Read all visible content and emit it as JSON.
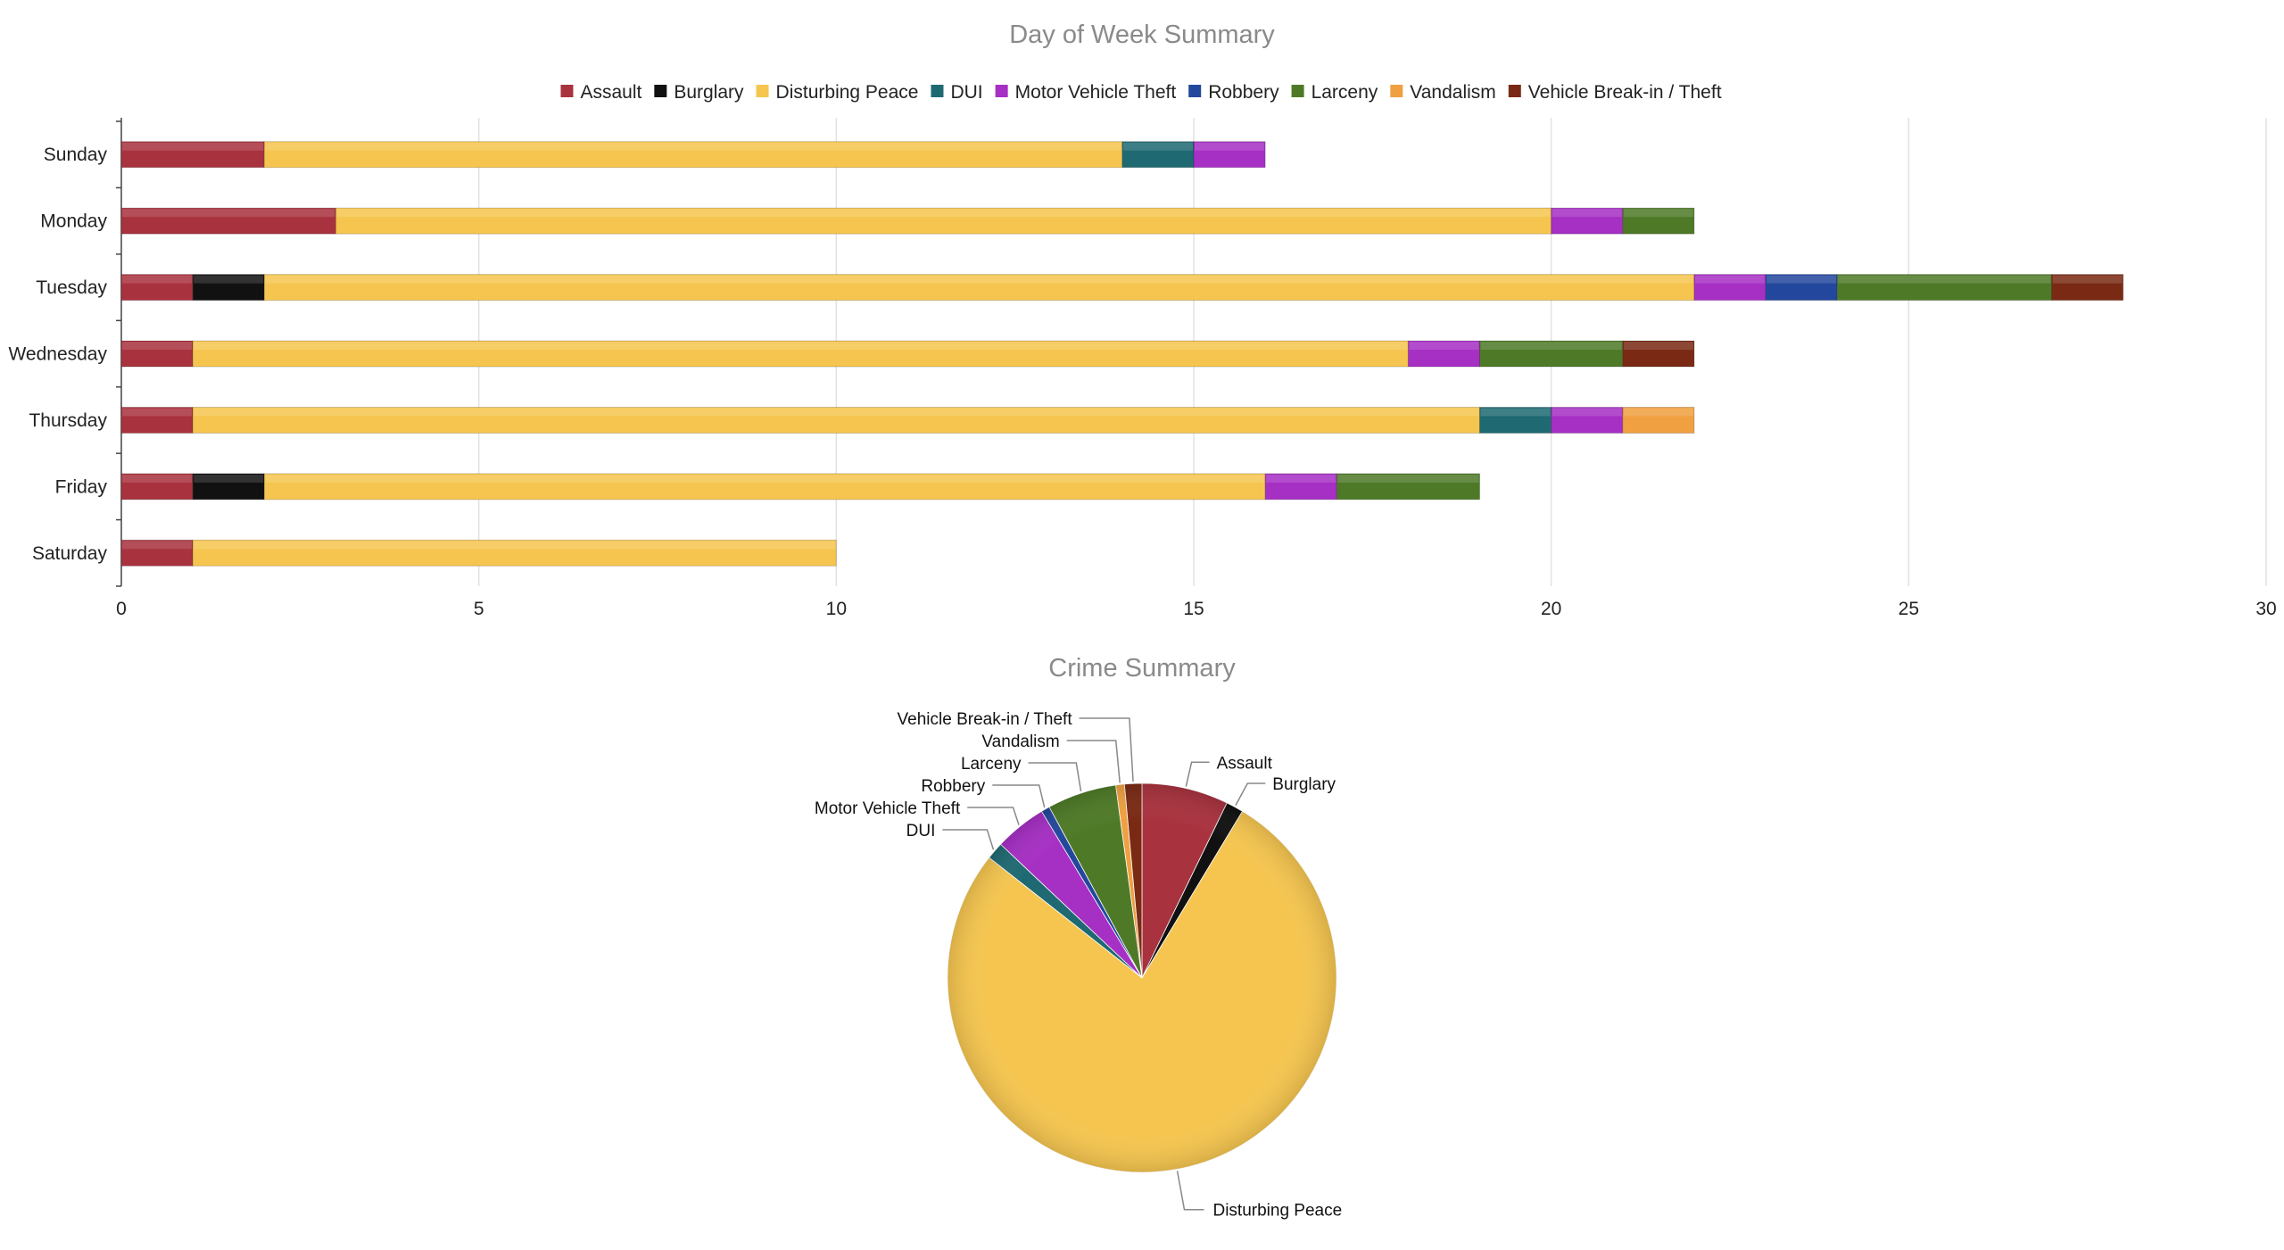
{
  "chart_data": [
    {
      "type": "bar",
      "orientation": "horizontal",
      "stacked": true,
      "title": "Day of Week Summary",
      "categories": [
        "Sunday",
        "Monday",
        "Tuesday",
        "Wednesday",
        "Thursday",
        "Friday",
        "Saturday"
      ],
      "series": [
        {
          "name": "Assault",
          "color": "#a8323e",
          "values": [
            2,
            3,
            1,
            1,
            1,
            1,
            1
          ]
        },
        {
          "name": "Burglary",
          "color": "#111111",
          "values": [
            0,
            0,
            1,
            0,
            0,
            1,
            0
          ]
        },
        {
          "name": "Disturbing Peace",
          "color": "#f5c54f",
          "values": [
            12,
            17,
            20,
            17,
            18,
            14,
            9
          ]
        },
        {
          "name": "DUI",
          "color": "#1f6a72",
          "values": [
            1,
            0,
            0,
            0,
            1,
            0,
            0
          ]
        },
        {
          "name": "Motor Vehicle Theft",
          "color": "#a62fc4",
          "values": [
            1,
            1,
            1,
            1,
            1,
            1,
            0
          ]
        },
        {
          "name": "Robbery",
          "color": "#23479c",
          "values": [
            0,
            0,
            1,
            0,
            0,
            0,
            0
          ]
        },
        {
          "name": "Larceny",
          "color": "#4e7a27",
          "values": [
            0,
            1,
            3,
            2,
            0,
            2,
            0
          ]
        },
        {
          "name": "Vandalism",
          "color": "#f0a040",
          "values": [
            0,
            0,
            0,
            0,
            1,
            0,
            0
          ]
        },
        {
          "name": "Vehicle Break-in / Theft",
          "color": "#7a2a14",
          "values": [
            0,
            0,
            1,
            1,
            0,
            0,
            0
          ]
        }
      ],
      "xlim": [
        0,
        30
      ],
      "xticks": [
        0,
        5,
        10,
        15,
        20,
        25,
        30
      ],
      "legend_position": "top",
      "grid": true
    },
    {
      "type": "pie",
      "title": "Crime Summary",
      "labels": [
        "Assault",
        "Burglary",
        "Disturbing Peace",
        "DUI",
        "Motor Vehicle Theft",
        "Robbery",
        "Larceny",
        "Vandalism",
        "Vehicle Break-in / Theft"
      ],
      "values": [
        10,
        2,
        107,
        2,
        6,
        1,
        8,
        1,
        2
      ],
      "colors": [
        "#a8323e",
        "#111111",
        "#f5c54f",
        "#1f6a72",
        "#a62fc4",
        "#23479c",
        "#4e7a27",
        "#f0a040",
        "#7a2a14"
      ]
    }
  ]
}
